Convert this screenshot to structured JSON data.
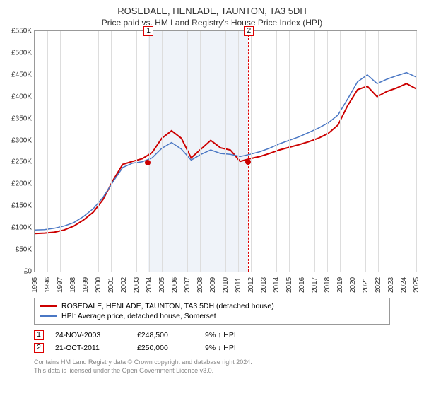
{
  "title": "ROSEDALE, HENLADE, TAUNTON, TA3 5DH",
  "subtitle": "Price paid vs. HM Land Registry's House Price Index (HPI)",
  "chart": {
    "type": "line",
    "background_color": "#ffffff",
    "grid_color": "#dddddd",
    "border_color": "#999999",
    "ylim": [
      0,
      550000
    ],
    "ytick_step": 50000,
    "yticks": [
      "£0",
      "£50K",
      "£100K",
      "£150K",
      "£200K",
      "£250K",
      "£300K",
      "£350K",
      "£400K",
      "£450K",
      "£500K",
      "£550K"
    ],
    "x_categories": [
      "1995",
      "1996",
      "1997",
      "1998",
      "1999",
      "2000",
      "2001",
      "2002",
      "2003",
      "2004",
      "2005",
      "2006",
      "2007",
      "2008",
      "2009",
      "2010",
      "2011",
      "2012",
      "2013",
      "2014",
      "2015",
      "2016",
      "2017",
      "2018",
      "2019",
      "2020",
      "2021",
      "2022",
      "2023",
      "2024",
      "2025"
    ],
    "banded_region": {
      "start_index": 8.9,
      "end_index": 16.8,
      "color": "#e8eef7"
    },
    "series": [
      {
        "name": "ROSEDALE, HENLADE, TAUNTON, TA3 5DH (detached house)",
        "color": "#cc0000",
        "line_width": 2,
        "values": [
          87,
          88,
          90,
          95,
          104,
          118,
          136,
          165,
          208,
          245,
          252,
          258,
          272,
          305,
          322,
          305,
          260,
          280,
          300,
          283,
          278,
          252,
          258,
          263,
          270,
          278,
          284,
          290,
          297,
          305,
          316,
          335,
          380,
          416,
          424,
          400,
          412,
          420,
          430,
          418
        ]
      },
      {
        "name": "HPI: Average price, detached house, Somerset",
        "color": "#4a77c4",
        "line_width": 1.5,
        "values": [
          95,
          96,
          99,
          104,
          112,
          126,
          144,
          170,
          205,
          238,
          248,
          251,
          260,
          282,
          295,
          280,
          255,
          268,
          278,
          270,
          268,
          263,
          268,
          274,
          282,
          292,
          300,
          308,
          318,
          328,
          340,
          358,
          395,
          434,
          450,
          430,
          440,
          448,
          455,
          445
        ]
      }
    ],
    "markers": [
      {
        "label": "1",
        "x_index": 8.9,
        "y_value": 248500
      },
      {
        "label": "2",
        "x_index": 16.8,
        "y_value": 250000
      }
    ]
  },
  "legend": {
    "rows": [
      {
        "color": "#cc0000",
        "label": "ROSEDALE, HENLADE, TAUNTON, TA3 5DH (detached house)"
      },
      {
        "color": "#4a77c4",
        "label": "HPI: Average price, detached house, Somerset"
      }
    ]
  },
  "datapoints": [
    {
      "marker": "1",
      "date": "24-NOV-2003",
      "price": "£248,500",
      "pct": "9% ↑ HPI"
    },
    {
      "marker": "2",
      "date": "21-OCT-2011",
      "price": "£250,000",
      "pct": "9% ↓ HPI"
    }
  ],
  "footer_line1": "Contains HM Land Registry data © Crown copyright and database right 2024.",
  "footer_line2": "This data is licensed under the Open Government Licence v3.0."
}
